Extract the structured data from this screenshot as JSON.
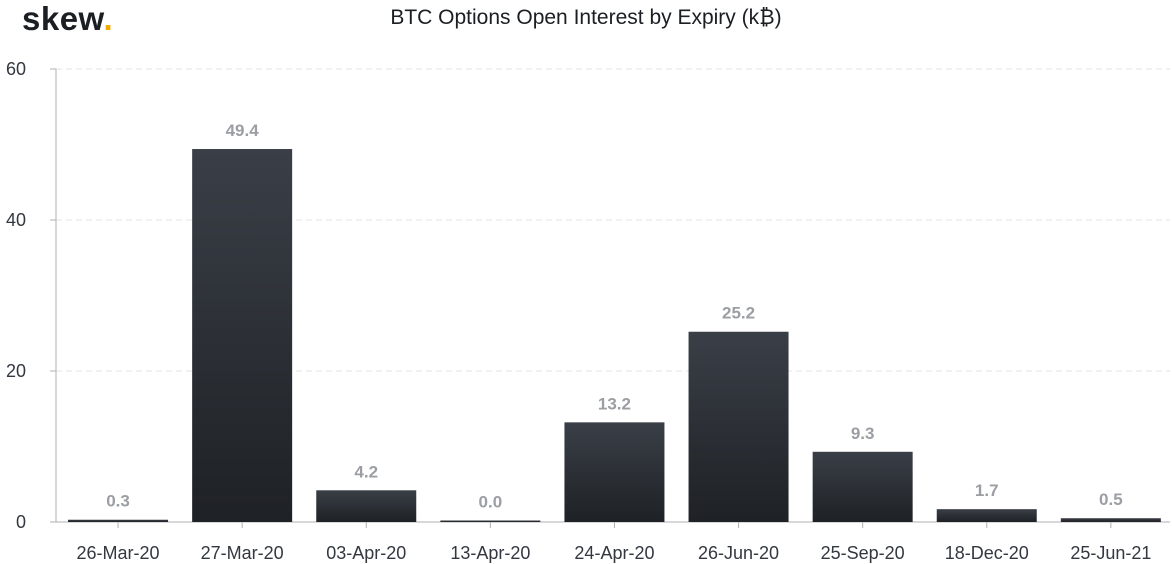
{
  "brand": {
    "name": "skew",
    "dot": ".",
    "accent": "#f2a900"
  },
  "chart_data": {
    "type": "bar",
    "title": "BTC Options Open Interest by Expiry (k₿)",
    "xlabel": "",
    "ylabel": "",
    "categories": [
      "26-Mar-20",
      "27-Mar-20",
      "03-Apr-20",
      "13-Apr-20",
      "24-Apr-20",
      "26-Jun-20",
      "25-Sep-20",
      "18-Dec-20",
      "25-Jun-21"
    ],
    "values": [
      0.3,
      49.4,
      4.2,
      0.0,
      13.2,
      25.2,
      9.3,
      1.7,
      0.5
    ],
    "data_labels": [
      "0.3",
      "49.4",
      "4.2",
      "0.0",
      "13.2",
      "25.2",
      "9.3",
      "1.7",
      "0.5"
    ],
    "ylim": [
      0,
      60
    ],
    "yticks": [
      0,
      20,
      40,
      60
    ],
    "grid": true,
    "bar_color": "#2a2e33",
    "grid_color": "#e3e3e3"
  }
}
